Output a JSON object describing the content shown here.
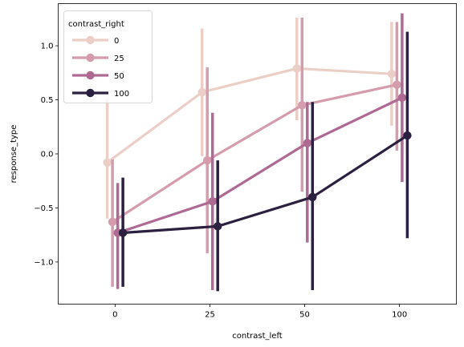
{
  "chart_data": {
    "type": "line",
    "title": "",
    "xlabel": "contrast_left",
    "ylabel": "response_type",
    "categories": [
      "0",
      "25",
      "50",
      "100"
    ],
    "yticks": [
      -1.0,
      -0.5,
      0.0,
      0.5,
      1.0
    ],
    "ytick_labels": [
      "−1.0",
      "−0.5",
      "0.0",
      "0.5",
      "1.0"
    ],
    "ylim": [
      -1.39,
      1.39
    ],
    "grid": false,
    "legend": {
      "title": "contrast_right",
      "placement": "top-left"
    },
    "series": [
      {
        "name": "0",
        "color": "#ebcfc7",
        "values": [
          -0.08,
          0.57,
          0.79,
          0.74
        ],
        "ci_low": [
          -0.6,
          -0.02,
          0.31,
          0.26
        ],
        "ci_high": [
          0.51,
          1.16,
          1.26,
          1.22
        ]
      },
      {
        "name": "25",
        "color": "#d59cad",
        "values": [
          -0.63,
          -0.06,
          0.45,
          0.64
        ],
        "ci_low": [
          -1.23,
          -0.92,
          -0.35,
          0.03
        ],
        "ci_high": [
          -0.05,
          0.8,
          1.26,
          1.22
        ]
      },
      {
        "name": "50",
        "color": "#ae6a93",
        "values": [
          -0.73,
          -0.44,
          0.1,
          0.52
        ],
        "ci_low": [
          -1.25,
          -1.26,
          -0.82,
          -0.26
        ],
        "ci_high": [
          -0.27,
          0.38,
          0.48,
          1.3
        ]
      },
      {
        "name": "100",
        "color": "#2b2040",
        "values": [
          -0.73,
          -0.67,
          -0.4,
          0.17
        ],
        "ci_low": [
          -1.23,
          -1.27,
          -1.26,
          -0.78
        ],
        "ci_high": [
          -0.22,
          -0.06,
          0.48,
          1.13
        ]
      }
    ]
  }
}
